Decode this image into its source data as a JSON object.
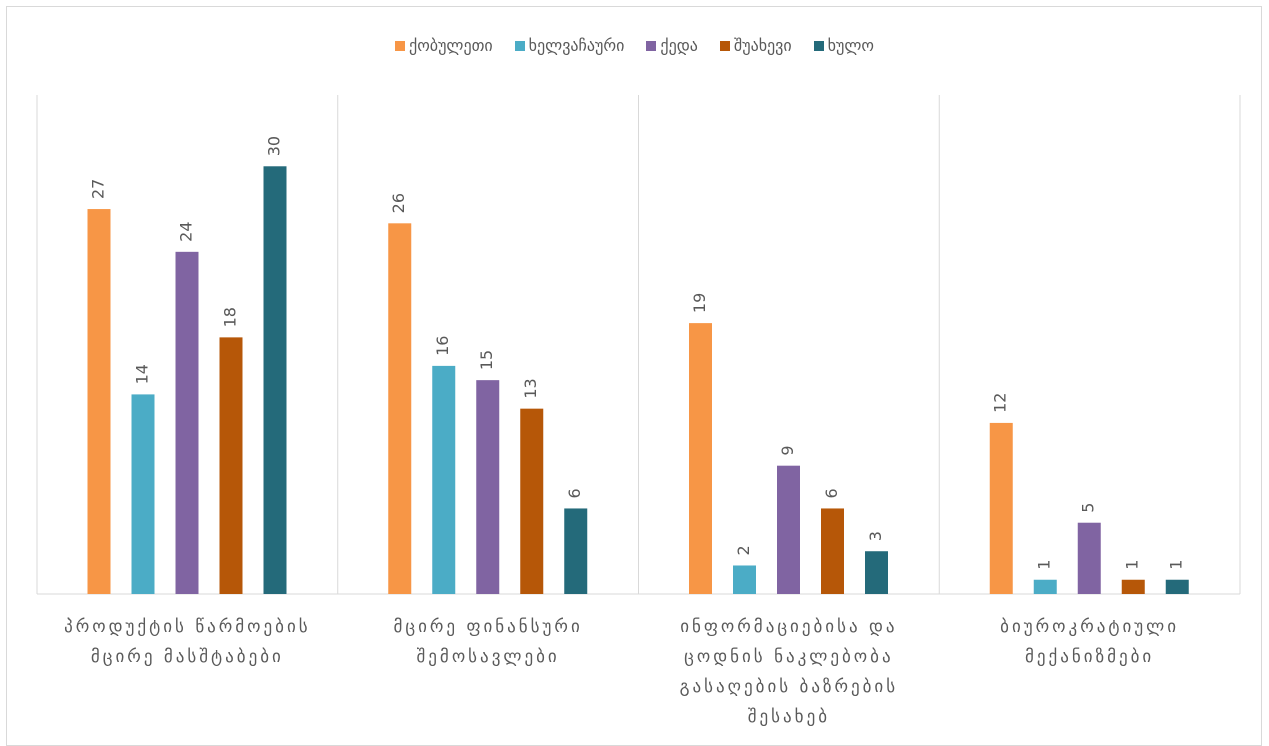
{
  "chart_data": {
    "type": "bar",
    "categories": [
      "პროდუქტის წარმოების მცირე მასშტაბები",
      "მცირე ფინანსური შემოსავლები",
      "ინფორმაციებისა და ცოდნის ნაკლებობა გასაღების ბაზრების შესახებ",
      "ბიუროკრატიული მექანიზმები"
    ],
    "series": [
      {
        "name": "ქობულეთი",
        "color": "#f79646",
        "values": [
          27,
          26,
          19,
          12
        ]
      },
      {
        "name": "ხელვაჩაური",
        "color": "#4bacc6",
        "values": [
          14,
          16,
          2,
          1
        ]
      },
      {
        "name": "ქედა",
        "color": "#8064a2",
        "values": [
          24,
          15,
          9,
          5
        ]
      },
      {
        "name": "შუახევი",
        "color": "#b65708",
        "values": [
          18,
          13,
          6,
          1
        ]
      },
      {
        "name": "ხულო",
        "color": "#246a7a",
        "values": [
          30,
          6,
          3,
          1
        ]
      }
    ],
    "ylim": [
      0,
      35
    ],
    "legend": "top"
  }
}
